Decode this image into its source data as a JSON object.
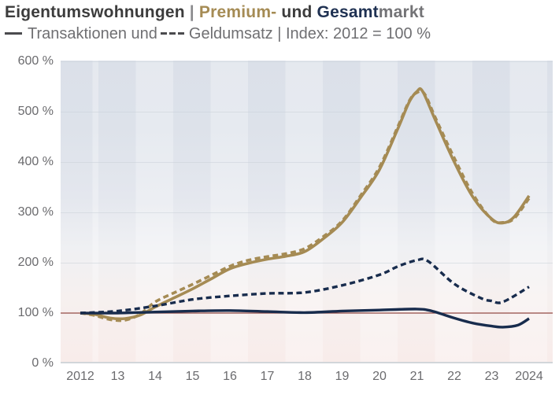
{
  "header": {
    "title_part_market_segment": "Eigentumswohnungen",
    "title_separator": " | ",
    "title_part_premium": "Premium-",
    "title_part_und": " und ",
    "title_part_gesamt": "Gesamt",
    "title_part_markt": "markt",
    "subtitle_legend1_label": "Transaktionen und",
    "subtitle_legend2_label": "Geldumsatz | Index: 2012 = 100 %"
  },
  "colors": {
    "premium_gold": "#a58b54",
    "gesamt_navy": "#182c4d",
    "reference_maroon": "#9b4f49",
    "title_charcoal": "#3c3c3c",
    "title_gray": "#737376",
    "axis_gray": "#6b6b6e"
  },
  "chart_data": {
    "type": "line",
    "title": "Eigentumswohnungen | Premium- und Gesamtmarkt",
    "subtitle": "Transaktionen und Geldumsatz | Index: 2012 = 100 %",
    "xlabel": "",
    "ylabel": "Index (2012 = 100 %)",
    "ylim": [
      0,
      600
    ],
    "xlim": [
      2012,
      2024
    ],
    "grid": "horizontal",
    "legend_position": "in-subtitle",
    "y_tick_labels": [
      "600 %",
      "500 %",
      "400 %",
      "300 %",
      "200 %",
      "100 %",
      "0 %"
    ],
    "y_tick_values": [
      600,
      500,
      400,
      300,
      200,
      100,
      0
    ],
    "x_tick_labels": [
      "2012",
      "13",
      "14",
      "15",
      "16",
      "17",
      "18",
      "19",
      "20",
      "21",
      "22",
      "23",
      "2024"
    ],
    "x_tick_values": [
      2012,
      2013,
      2014,
      2015,
      2016,
      2017,
      2018,
      2019,
      2020,
      2021,
      2022,
      2023,
      2024
    ],
    "reference_line": {
      "value": 100,
      "color": "#9b4f49",
      "label": "100 %"
    },
    "series": [
      {
        "name": "Transaktionen Premiummarkt",
        "color": "#a58b54",
        "style": "solid",
        "width": 3.6,
        "points": [
          [
            2012,
            100
          ],
          [
            2012.4,
            97
          ],
          [
            2012.8,
            90
          ],
          [
            2013.2,
            89
          ],
          [
            2013.6,
            96
          ],
          [
            2014,
            112
          ],
          [
            2014.5,
            130
          ],
          [
            2015,
            148
          ],
          [
            2015.5,
            168
          ],
          [
            2016,
            188
          ],
          [
            2016.5,
            199
          ],
          [
            2017,
            207
          ],
          [
            2017.5,
            213
          ],
          [
            2018,
            222
          ],
          [
            2018.5,
            248
          ],
          [
            2019,
            280
          ],
          [
            2019.5,
            330
          ],
          [
            2020,
            385
          ],
          [
            2020.5,
            468
          ],
          [
            2020.8,
            520
          ],
          [
            2021,
            540
          ],
          [
            2021.15,
            541
          ],
          [
            2021.5,
            482
          ],
          [
            2022,
            400
          ],
          [
            2022.5,
            330
          ],
          [
            2023,
            287
          ],
          [
            2023.3,
            279
          ],
          [
            2023.6,
            291
          ],
          [
            2024,
            333
          ]
        ]
      },
      {
        "name": "Geldumsatz Premiummarkt",
        "color": "#a58b54",
        "style": "dashed",
        "width": 3.6,
        "points": [
          [
            2012,
            100
          ],
          [
            2012.4,
            95
          ],
          [
            2012.8,
            87
          ],
          [
            2013.2,
            86
          ],
          [
            2013.6,
            98
          ],
          [
            2014,
            122
          ],
          [
            2014.5,
            140
          ],
          [
            2015,
            157
          ],
          [
            2015.5,
            175
          ],
          [
            2016,
            193
          ],
          [
            2016.5,
            205
          ],
          [
            2017,
            212
          ],
          [
            2017.5,
            218
          ],
          [
            2018,
            228
          ],
          [
            2018.5,
            252
          ],
          [
            2019,
            283
          ],
          [
            2019.5,
            334
          ],
          [
            2020,
            390
          ],
          [
            2020.5,
            472
          ],
          [
            2020.8,
            522
          ],
          [
            2021,
            538
          ],
          [
            2021.2,
            536
          ],
          [
            2021.5,
            487
          ],
          [
            2022,
            408
          ],
          [
            2022.5,
            336
          ],
          [
            2023,
            286
          ],
          [
            2023.3,
            280
          ],
          [
            2023.6,
            288
          ],
          [
            2024,
            328
          ]
        ]
      },
      {
        "name": "Transaktionen Gesamtmarkt",
        "color": "#182c4d",
        "style": "solid",
        "width": 3.4,
        "points": [
          [
            2012,
            100
          ],
          [
            2013,
            100
          ],
          [
            2014,
            102
          ],
          [
            2015,
            104
          ],
          [
            2016,
            105
          ],
          [
            2017,
            103
          ],
          [
            2018,
            101
          ],
          [
            2019,
            104
          ],
          [
            2020,
            106
          ],
          [
            2021,
            108
          ],
          [
            2021.4,
            104
          ],
          [
            2022,
            90
          ],
          [
            2022.5,
            80
          ],
          [
            2023,
            74
          ],
          [
            2023.3,
            72
          ],
          [
            2023.7,
            76
          ],
          [
            2024,
            89
          ]
        ]
      },
      {
        "name": "Geldumsatz Gesamtmarkt",
        "color": "#182c4d",
        "style": "dashed",
        "width": 3.4,
        "points": [
          [
            2012,
            100
          ],
          [
            2013,
            104
          ],
          [
            2014,
            114
          ],
          [
            2015,
            127
          ],
          [
            2016,
            134
          ],
          [
            2017,
            139
          ],
          [
            2018,
            141
          ],
          [
            2019,
            155
          ],
          [
            2020,
            176
          ],
          [
            2020.5,
            193
          ],
          [
            2021,
            205
          ],
          [
            2021.3,
            203
          ],
          [
            2022,
            158
          ],
          [
            2022.7,
            130
          ],
          [
            2023,
            124
          ],
          [
            2023.3,
            122
          ],
          [
            2024,
            152
          ]
        ]
      }
    ]
  }
}
